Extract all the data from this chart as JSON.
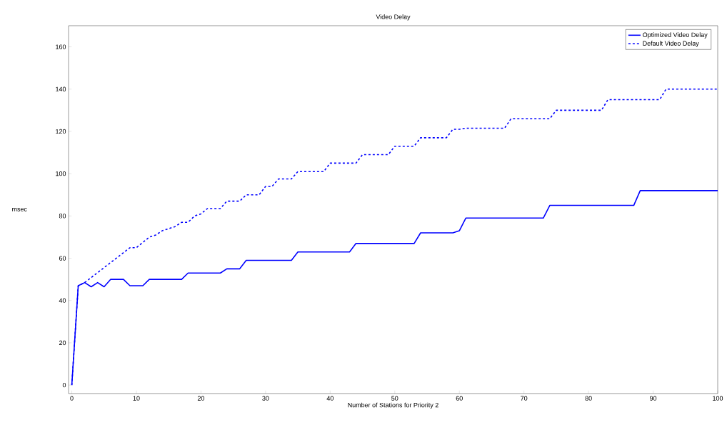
{
  "chart_data": {
    "type": "line",
    "title": "Video Delay",
    "xlabel": "Number of Stations for Priority 2",
    "ylabel": "msec",
    "xlim": [
      -0.5,
      100
    ],
    "ylim": [
      -4,
      170
    ],
    "xticks": [
      0,
      10,
      20,
      30,
      40,
      50,
      60,
      70,
      80,
      90,
      100
    ],
    "yticks": [
      0,
      20,
      40,
      60,
      80,
      100,
      120,
      140,
      160
    ],
    "grid": false,
    "legend": "top right",
    "marker": "none",
    "series": [
      {
        "name": "Optimized Video Delay",
        "color": "#0000ff",
        "line_style": "solid",
        "x": [
          0,
          1,
          2,
          3,
          4,
          5,
          6,
          8,
          9,
          11,
          12,
          17,
          18,
          23,
          24,
          26,
          27,
          34,
          35,
          43,
          44,
          53,
          54,
          59,
          60,
          61,
          73,
          74,
          87,
          88,
          100
        ],
        "values": [
          0,
          47,
          48.5,
          46.5,
          48.5,
          46.5,
          50,
          50,
          47,
          47,
          50,
          50,
          53,
          53,
          55,
          55,
          59,
          59,
          63,
          63,
          67,
          67,
          72,
          72,
          73,
          79,
          79,
          85,
          85,
          92,
          92
        ]
      },
      {
        "name": "Default Video Delay",
        "color": "#0000ff",
        "line_style": "dashed",
        "x": [
          0,
          1,
          2,
          9,
          10,
          12,
          13,
          14,
          15,
          16,
          17,
          18,
          19,
          20,
          21,
          23,
          24,
          26,
          27,
          29,
          30,
          31,
          32,
          34,
          35,
          39,
          40,
          44,
          45,
          49,
          50,
          53,
          54,
          58,
          59,
          60,
          61,
          67,
          68,
          74,
          75,
          82,
          83,
          91,
          92,
          100
        ],
        "values": [
          0,
          47,
          48.5,
          65,
          65,
          70,
          71,
          73,
          74,
          75,
          77,
          77,
          80,
          81,
          83.5,
          83.5,
          87,
          87,
          90,
          90,
          94,
          94,
          97.5,
          97.5,
          101,
          101,
          105,
          105,
          109,
          109,
          113,
          113,
          117,
          117,
          121,
          121,
          121.5,
          121.5,
          126,
          126,
          130,
          130,
          135,
          135,
          140,
          140
        ]
      }
    ]
  }
}
